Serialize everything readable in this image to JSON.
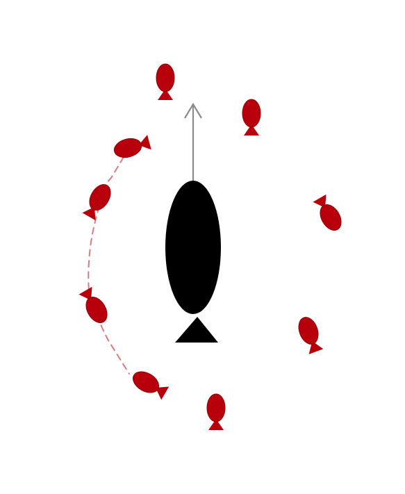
{
  "colors": {
    "background": "#ffffff",
    "leader_fish": "#000000",
    "school_fish": "#b8000c",
    "school_fish_edge": "#8e0009",
    "motion_arrow": "#8a8a8a",
    "trajectory": "#d77a84"
  },
  "diagram": {
    "leader": {
      "icon": "large-black-fish-icon",
      "heading": "up",
      "motion_arrow_icon": "arrow-up-icon"
    },
    "school": {
      "icon": "small-red-fish-icon",
      "count": 9,
      "headings_deg": [
        0,
        0,
        -105,
        30,
        150,
        150,
        -20,
        -60,
        0
      ]
    },
    "trajectory": {
      "style": "dashed",
      "icon": "dashed-path-icon"
    }
  }
}
